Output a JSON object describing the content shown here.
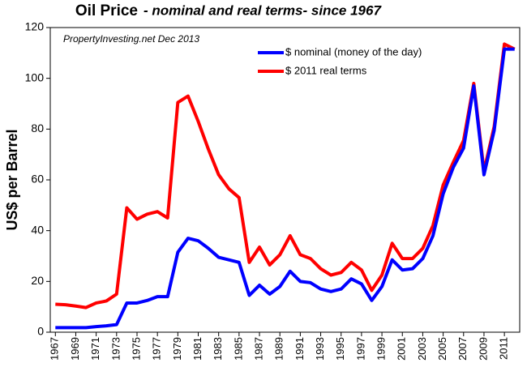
{
  "chart_data": {
    "type": "line",
    "title": "Oil Price",
    "subtitle": "- nominal and real terms- since 1967",
    "annotation": "PropertyInvesting.net  Dec 2013",
    "ylabel": "US$ per Barrel",
    "x": [
      1967,
      1968,
      1969,
      1970,
      1971,
      1972,
      1973,
      1974,
      1975,
      1976,
      1977,
      1978,
      1979,
      1980,
      1981,
      1982,
      1983,
      1984,
      1985,
      1986,
      1987,
      1988,
      1989,
      1990,
      1991,
      1992,
      1993,
      1994,
      1995,
      1996,
      1997,
      1998,
      1999,
      2000,
      2001,
      2002,
      2003,
      2004,
      2005,
      2006,
      2007,
      2008,
      2009,
      2010,
      2011,
      2012
    ],
    "series": [
      {
        "name": "$ 2011 real terms",
        "color": "#ff0000",
        "values": [
          11,
          10.8,
          10.3,
          9.7,
          11.5,
          12.3,
          15,
          49,
          44.5,
          46.5,
          47.5,
          45,
          90.5,
          93,
          83,
          72,
          62,
          56.5,
          53,
          27.5,
          33.5,
          26.5,
          30.5,
          38,
          30.5,
          29,
          25,
          22.5,
          23.5,
          27.5,
          24.5,
          16.5,
          22.5,
          35,
          29,
          29,
          33,
          42,
          58,
          67,
          75.5,
          98,
          63.5,
          81,
          113.5,
          111.5
        ]
      },
      {
        "name": "$ nominal (money of the day)",
        "color": "#0000ff",
        "values": [
          1.8,
          1.8,
          1.8,
          1.8,
          2.2,
          2.5,
          3,
          11.5,
          11.5,
          12.5,
          14,
          14,
          31.5,
          37,
          36,
          33,
          29.5,
          28.5,
          27.5,
          14.5,
          18.5,
          15,
          18,
          24,
          20,
          19.5,
          17,
          16,
          17,
          21,
          19,
          12.5,
          18,
          28.5,
          24.5,
          25,
          29,
          38,
          54.5,
          65,
          72.5,
          97,
          62,
          79.5,
          111.5,
          111.5
        ]
      }
    ],
    "legend_order": [
      1,
      0
    ],
    "xlim": [
      1966.5,
      2012.5
    ],
    "xticks": [
      1967,
      1969,
      1971,
      1973,
      1975,
      1977,
      1979,
      1981,
      1983,
      1985,
      1987,
      1989,
      1991,
      1993,
      1995,
      1997,
      1999,
      2001,
      2003,
      2005,
      2007,
      2009,
      2011
    ],
    "ylim": [
      0,
      120
    ],
    "yticks": [
      0,
      20,
      40,
      60,
      80,
      100,
      120
    ],
    "grid": false
  }
}
